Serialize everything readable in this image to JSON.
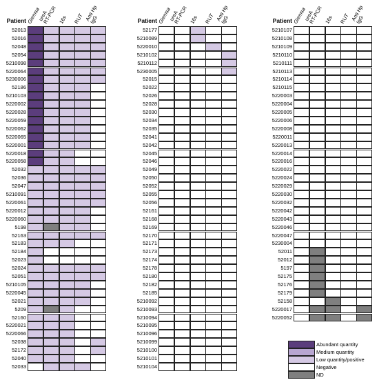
{
  "columns": [
    {
      "line1": "Giemsa",
      "line2": "",
      "italic": true
    },
    {
      "line1": "ureA",
      "line2": "RT-PCR",
      "italic": false
    },
    {
      "line1": "16s",
      "line2": "",
      "italic": false
    },
    {
      "line1": "RUT",
      "line2": "",
      "italic": false
    },
    {
      "line1": "Anti Hp",
      "line2": "IgG",
      "italic": false
    }
  ],
  "patient_label": "Patient",
  "colors": {
    "A": "#5b3d7c",
    "M": "#b8a6d1",
    "L": "#d5c9e4",
    "N": "#ffffff",
    "D": "#7f7f7f"
  },
  "legend": [
    {
      "code": "A",
      "label": "Abundant quantity"
    },
    {
      "code": "M",
      "label": "Medium quantity"
    },
    {
      "code": "L",
      "label": "Low quantity/positive"
    },
    {
      "code": "N",
      "label": "Negative"
    },
    {
      "code": "D",
      "label": "ND"
    }
  ],
  "panels": [
    {
      "rows": [
        [
          "52013",
          "ALLLL"
        ],
        [
          "52016",
          "ALLLL"
        ],
        [
          "52048",
          "ALLLL"
        ],
        [
          "52054",
          "ALLLL"
        ],
        [
          "5210098",
          "ALLLL"
        ],
        [
          "5220064",
          "ALLLL"
        ],
        [
          "5230006",
          "ALLLL"
        ],
        [
          "52186",
          "ALLLN"
        ],
        [
          "5210103",
          "ALLLN"
        ],
        [
          "5220002",
          "ALLLN"
        ],
        [
          "5220028",
          "ALLLN"
        ],
        [
          "5220059",
          "ALLLN"
        ],
        [
          "5220062",
          "ALLLN"
        ],
        [
          "5220065",
          "ALLLN"
        ],
        [
          "5220001",
          "ALLLN"
        ],
        [
          "5220018",
          "ALLNN"
        ],
        [
          "5220058",
          "ALLNN"
        ],
        [
          "52032",
          "LLLLL"
        ],
        [
          "52036",
          "LLLLL"
        ],
        [
          "52047",
          "LLLLL"
        ],
        [
          "5210091",
          "LLLLL"
        ],
        [
          "5220061",
          "LLLLL"
        ],
        [
          "5220012",
          "LLLLN"
        ],
        [
          "5220060",
          "LLLLN"
        ],
        [
          "5198",
          "LDLLN"
        ],
        [
          "52163",
          "LLLLL"
        ],
        [
          "52183",
          "LLLNN"
        ],
        [
          "52184",
          "LNNNN"
        ],
        [
          "52023",
          "LNNNN"
        ],
        [
          "52024",
          "LLLLL"
        ],
        [
          "52051",
          "LLLLL"
        ],
        [
          "5210105",
          "LLLLN"
        ],
        [
          "5220045",
          "LLLLN"
        ],
        [
          "52021",
          "LLLLN"
        ],
        [
          "5209",
          "LDLNN"
        ],
        [
          "52160",
          "LLLNN"
        ],
        [
          "5220021",
          "LLLNN"
        ],
        [
          "5220066",
          "LLLNN"
        ],
        [
          "52038",
          "LLLNL"
        ],
        [
          "52172",
          "LLLNL"
        ],
        [
          "52040",
          "LLLNN"
        ],
        [
          "52033",
          "NLLLN"
        ]
      ]
    },
    {
      "rows": [
        [
          "52177",
          "NNLNN"
        ],
        [
          "5210089",
          "NNLNN"
        ],
        [
          "5220010",
          "NNNLN"
        ],
        [
          "5210102",
          "NNNNL"
        ],
        [
          "5210112",
          "NNNNL"
        ],
        [
          "5230005",
          "NNNNL"
        ],
        [
          "52015",
          "NNNNN"
        ],
        [
          "52022",
          "NNNNN"
        ],
        [
          "52026",
          "NNNNN"
        ],
        [
          "52028",
          "NNNNN"
        ],
        [
          "52030",
          "NNNNN"
        ],
        [
          "52034",
          "NNNNN"
        ],
        [
          "52035",
          "NNNNN"
        ],
        [
          "52041",
          "NNNNN"
        ],
        [
          "52042",
          "NNNNN"
        ],
        [
          "52045",
          "NNNNN"
        ],
        [
          "52046",
          "NNNNN"
        ],
        [
          "52049",
          "NNNNN"
        ],
        [
          "52050",
          "NNNNN"
        ],
        [
          "52052",
          "NNNNN"
        ],
        [
          "52055",
          "NNNNN"
        ],
        [
          "52056",
          "NNNNN"
        ],
        [
          "52161",
          "NNNNN"
        ],
        [
          "52168",
          "NNNNN"
        ],
        [
          "52169",
          "NNNNN"
        ],
        [
          "52170",
          "NNNNN"
        ],
        [
          "52171",
          "NNNNN"
        ],
        [
          "52173",
          "NNNNN"
        ],
        [
          "52174",
          "NNNNN"
        ],
        [
          "52178",
          "NNNNN"
        ],
        [
          "52180",
          "NNNNN"
        ],
        [
          "52182",
          "NNNNN"
        ],
        [
          "52185",
          "NNNNN"
        ],
        [
          "5210092",
          "NNNNN"
        ],
        [
          "5210093",
          "NNNNN"
        ],
        [
          "5210094",
          "NNNNN"
        ],
        [
          "5210095",
          "NNNNN"
        ],
        [
          "5210096",
          "NNNNN"
        ],
        [
          "5210099",
          "NNNNN"
        ],
        [
          "5210100",
          "NNNNN"
        ],
        [
          "5210101",
          "NNNNN"
        ],
        [
          "5210104",
          "NNNNN"
        ]
      ]
    },
    {
      "rows": [
        [
          "5210107",
          "NNNNN"
        ],
        [
          "5210108",
          "NNNNN"
        ],
        [
          "5210109",
          "NNNNN"
        ],
        [
          "5210110",
          "NNNNN"
        ],
        [
          "5210111",
          "NNNNN"
        ],
        [
          "5210113",
          "NNNNN"
        ],
        [
          "5210114",
          "NNNNN"
        ],
        [
          "5210115",
          "NNNNN"
        ],
        [
          "5220003",
          "NNNNN"
        ],
        [
          "5220004",
          "NNNNN"
        ],
        [
          "5220005",
          "NNNNN"
        ],
        [
          "5220006",
          "NNNNN"
        ],
        [
          "5220008",
          "NNNNN"
        ],
        [
          "5220011",
          "NNNNN"
        ],
        [
          "5220013",
          "NNNNN"
        ],
        [
          "5220014",
          "NNNNN"
        ],
        [
          "5220016",
          "NNNNN"
        ],
        [
          "5220022",
          "NNNNN"
        ],
        [
          "5220024",
          "NNNNN"
        ],
        [
          "5220029",
          "NNNNN"
        ],
        [
          "5220030",
          "NNNNN"
        ],
        [
          "5220032",
          "NNNNN"
        ],
        [
          "5220042",
          "NNNNN"
        ],
        [
          "5220043",
          "NNNNN"
        ],
        [
          "5220046",
          "NNNNN"
        ],
        [
          "5220047",
          "NNNNN"
        ],
        [
          "5230004",
          "NNNNN"
        ],
        [
          "52011",
          "NDNNN"
        ],
        [
          "52012",
          "NDNNN"
        ],
        [
          "5197",
          "NDNNN"
        ],
        [
          "52175",
          "NDNNN"
        ],
        [
          "52176",
          "NDNNN"
        ],
        [
          "52179",
          "NDNNN"
        ],
        [
          "52158",
          "NNDNN"
        ],
        [
          "5220017",
          "NDDND"
        ],
        [
          "5220052",
          "NDDND"
        ]
      ]
    }
  ]
}
